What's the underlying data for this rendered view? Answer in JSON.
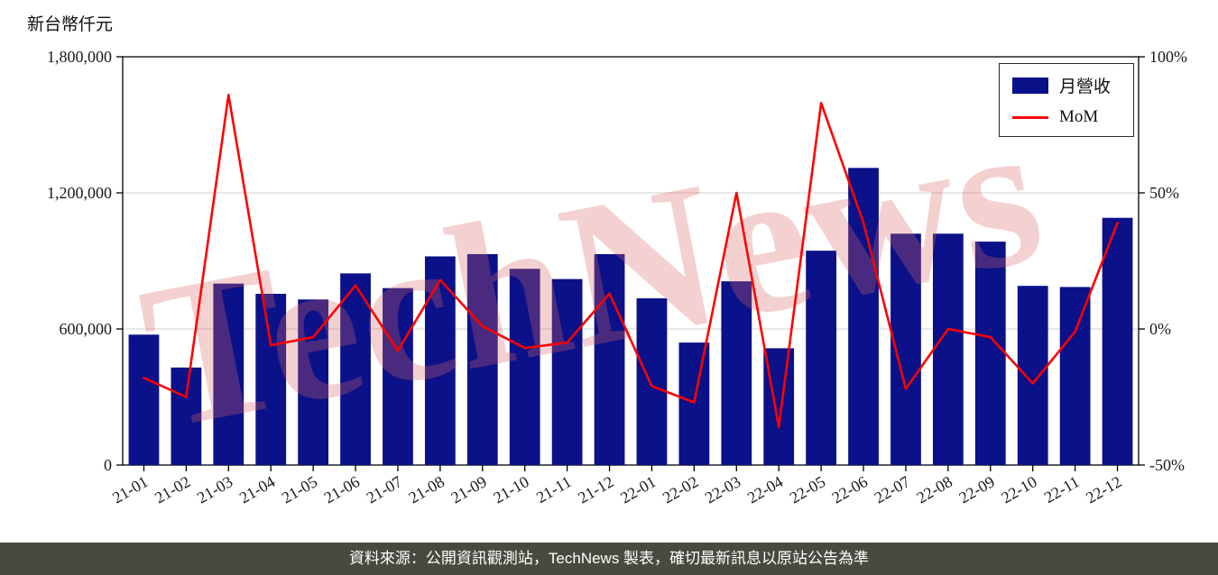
{
  "page": {
    "unit_label": "新台幣仟元",
    "watermark": "TechNews"
  },
  "footer": {
    "text": "資料來源：公開資訊觀測站，TechNews 製表，確切最新訊息以原站公告為準"
  },
  "chart_data": {
    "type": "bar",
    "combo": "bar+line",
    "title": "",
    "xlabel": "",
    "ylabel_left": "新台幣仟元",
    "ylabel_right": "%",
    "grid": "horizontal",
    "legend_position": "top-right",
    "categories": [
      "21-01",
      "21-02",
      "21-03",
      "21-04",
      "21-05",
      "21-06",
      "21-07",
      "21-08",
      "21-09",
      "21-10",
      "21-11",
      "21-12",
      "22-01",
      "22-02",
      "22-03",
      "22-04",
      "22-05",
      "22-06",
      "22-07",
      "22-08",
      "22-09",
      "22-10",
      "22-11",
      "22-12"
    ],
    "series": [
      {
        "name": "月營收",
        "type": "bar",
        "axis": "left",
        "color": "#0b1188",
        "values": [
          575000,
          430000,
          800000,
          755000,
          730000,
          845000,
          780000,
          920000,
          930000,
          865000,
          820000,
          930000,
          735000,
          540000,
          810000,
          515000,
          945000,
          1310000,
          1020000,
          1020000,
          985000,
          790000,
          785000,
          1090000
        ]
      },
      {
        "name": "MoM",
        "type": "line",
        "axis": "right",
        "unit": "%",
        "color": "#ff0000",
        "values": [
          -18,
          -25,
          86,
          -6,
          -3,
          16,
          -8,
          18,
          1,
          -7,
          -5,
          13,
          -21,
          -27,
          50,
          -36,
          83,
          39,
          -22,
          0,
          -3,
          -20,
          -1,
          39
        ]
      }
    ],
    "left_axis": {
      "min": 0,
      "max": 1800000,
      "tick_values": [
        0,
        600000,
        1200000,
        1800000
      ],
      "tick_labels": [
        "0",
        "600,000",
        "1,200,000",
        "1,800,000"
      ]
    },
    "right_axis": {
      "min": -50,
      "max": 100,
      "tick_values": [
        -50,
        0,
        50,
        100
      ],
      "tick_labels": [
        "-50%",
        "0%",
        "50%",
        "100%"
      ]
    }
  },
  "colors": {
    "bar": "#0b1188",
    "line": "#ff0000",
    "grid": "#d9d9d9",
    "axis": "#000000",
    "footer_bg": "#4a493f",
    "footer_text": "#ffffff",
    "watermark": "rgba(217,102,102,0.30)"
  }
}
